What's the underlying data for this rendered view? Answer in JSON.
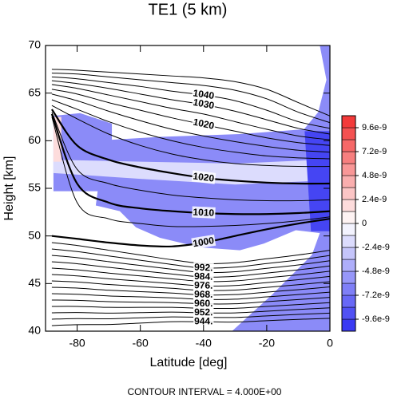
{
  "chart_data": {
    "type": "contour",
    "title": "TE1 (5 km)",
    "xlabel": "Latitude [deg]",
    "ylabel": "Height [km]",
    "footer": "CONTOUR INTERVAL = 4.000E+00",
    "xlim": [
      -90,
      0
    ],
    "ylim": [
      40,
      70
    ],
    "xticks": [
      -80,
      -60,
      -40,
      -20,
      0
    ],
    "yticks": [
      40,
      45,
      50,
      55,
      60,
      65,
      70
    ],
    "clim": [
      -1.08e-08,
      1.08e-08
    ],
    "cticks": [
      -9.6e-09,
      -7.2e-09,
      -4.8e-09,
      -2.4e-09,
      0,
      2.4e-09,
      4.8e-09,
      7.2e-09,
      9.6e-09
    ],
    "colormap": [
      "#2e2ef2",
      "#ffffff",
      "#f22e2e"
    ],
    "line_color": "#000000",
    "regions": [
      {
        "level": -6e-09,
        "x": [
          -87.5,
          -79.1,
          -69.0,
          -69.0,
          -53.8,
          -28.5,
          -8.2,
          -3.7,
          -1.1,
          -3.2,
          0,
          0,
          -31.0,
          -18.4,
          -5.7,
          -3.2,
          -10.8,
          -20.9,
          -28.5,
          -41.1,
          -53.8,
          -61.4,
          -66.5,
          -74.1,
          -73.5,
          -87.5
        ],
        "y": [
          62.6,
          62.9,
          61.8,
          60.1,
          60.4,
          60.7,
          61.2,
          63.0,
          66.4,
          70,
          70,
          40,
          40,
          43.8,
          48.0,
          50.3,
          50.6,
          49.2,
          48.5,
          48.8,
          49.8,
          50.9,
          52.6,
          53.2,
          54.7,
          54.7
        ]
      },
      {
        "level": -1.8e-09,
        "x": [
          -87.5,
          -60,
          -30,
          -3.5,
          -3.5,
          -30,
          -60,
          -87.5
        ],
        "y": [
          58.0,
          57.8,
          57.6,
          58.0,
          55.8,
          55.4,
          56.0,
          56.6
        ]
      },
      {
        "level": -9.6e-09,
        "x": [
          -8,
          0,
          0,
          -6
        ],
        "y": [
          61,
          61,
          50.5,
          50.5
        ]
      },
      {
        "level": 1.8e-09,
        "x": [
          -87.5,
          -85,
          -85,
          -87.5
        ],
        "y": [
          62.5,
          62.5,
          57.8,
          57.8
        ]
      }
    ],
    "x": [
      -88,
      -80,
      -70,
      -60,
      -50,
      -40,
      -30,
      -20,
      -10,
      0
    ],
    "series": [
      {
        "values": [
          67.5,
          67.4,
          67.2,
          67.0,
          66.8,
          66.6,
          66.2,
          65.4,
          64.0,
          62.6
        ]
      },
      {
        "values": [
          67.1,
          67.0,
          66.7,
          66.4,
          66.1,
          65.8,
          65.3,
          64.4,
          63.0,
          61.9
        ]
      },
      {
        "name": "1040",
        "values": [
          66.7,
          66.5,
          66.1,
          65.7,
          65.2,
          64.8,
          64.2,
          63.2,
          62.0,
          61.3
        ]
      },
      {
        "name": "1030",
        "values": [
          66.3,
          66.0,
          65.5,
          64.9,
          64.3,
          63.8,
          63.1,
          62.2,
          61.3,
          60.7
        ]
      },
      {
        "values": [
          65.9,
          65.5,
          64.8,
          64.1,
          63.4,
          62.8,
          62.0,
          61.2,
          60.5,
          60.1
        ]
      },
      {
        "name": "1020",
        "values": [
          65.4,
          64.9,
          64.0,
          63.2,
          62.4,
          61.7,
          61.0,
          60.3,
          59.8,
          59.5
        ]
      },
      {
        "values": [
          64.9,
          64.2,
          63.1,
          62.1,
          61.2,
          60.5,
          59.9,
          59.4,
          59.0,
          58.8
        ]
      },
      {
        "values": [
          64.3,
          63.3,
          62.0,
          60.9,
          60.0,
          59.3,
          58.8,
          58.4,
          58.2,
          58.1
        ]
      },
      {
        "values": [
          63.7,
          62.3,
          60.7,
          59.5,
          58.6,
          58.0,
          57.6,
          57.4,
          57.3,
          57.3
        ]
      },
      {
        "name": "1020",
        "bold": true,
        "values": [
          63.3,
          59.5,
          58.0,
          57.2,
          56.6,
          56.1,
          55.8,
          55.6,
          55.5,
          55.5
        ]
      },
      {
        "values": [
          63.0,
          57.0,
          55.5,
          54.8,
          54.3,
          54.0,
          53.8,
          53.7,
          53.7,
          53.8
        ]
      },
      {
        "name": "1010",
        "bold": true,
        "values": [
          62.8,
          55.5,
          53.5,
          52.9,
          52.6,
          52.4,
          52.3,
          52.3,
          52.4,
          52.6
        ]
      },
      {
        "values": [
          62.5,
          53.5,
          51.8,
          51.3,
          51.0,
          51.0,
          51.1,
          51.3,
          51.6,
          52.0
        ]
      },
      {
        "name": "1000",
        "bold": true,
        "values": [
          50.0,
          49.7,
          49.3,
          49.0,
          48.9,
          49.3,
          50.0,
          50.7,
          51.3,
          51.8
        ]
      },
      {
        "values": [
          49.3,
          49.0,
          48.5,
          48.0,
          47.5,
          47.1,
          47.2,
          47.6,
          48.0,
          48.5
        ]
      },
      {
        "name": "992.",
        "values": [
          48.63,
          48.36,
          47.9,
          47.45,
          47.0,
          46.63,
          46.72,
          47.1,
          47.48,
          47.95
        ]
      },
      {
        "values": [
          47.96,
          47.72,
          47.3,
          46.9,
          46.5,
          46.16,
          46.24,
          46.6,
          46.96,
          47.4
        ]
      },
      {
        "name": "984.",
        "values": [
          47.29,
          47.08,
          46.7,
          46.35,
          46.0,
          45.69,
          45.76,
          46.1,
          46.44,
          46.85
        ]
      },
      {
        "values": [
          46.62,
          46.44,
          46.1,
          45.8,
          45.5,
          45.22,
          45.28,
          45.6,
          45.92,
          46.3
        ]
      },
      {
        "name": "976.",
        "values": [
          45.95,
          45.8,
          45.5,
          45.25,
          45.0,
          44.75,
          44.8,
          45.1,
          45.4,
          45.75
        ]
      },
      {
        "values": [
          45.28,
          45.16,
          44.9,
          44.7,
          44.5,
          44.28,
          44.32,
          44.6,
          44.88,
          45.2
        ]
      },
      {
        "name": "968.",
        "values": [
          44.61,
          44.52,
          44.3,
          44.15,
          44.0,
          43.81,
          43.84,
          44.1,
          44.36,
          44.65
        ]
      },
      {
        "values": [
          43.94,
          43.88,
          43.7,
          43.6,
          43.5,
          43.34,
          43.36,
          43.6,
          43.84,
          44.1
        ]
      },
      {
        "name": "960.",
        "values": [
          43.27,
          43.24,
          43.1,
          43.05,
          43.0,
          42.87,
          42.88,
          43.1,
          43.32,
          43.55
        ]
      },
      {
        "values": [
          42.6,
          42.6,
          42.5,
          42.5,
          42.5,
          42.4,
          42.4,
          42.6,
          42.8,
          43.0
        ]
      },
      {
        "name": "952.",
        "values": [
          41.93,
          41.96,
          41.9,
          41.95,
          42.0,
          41.93,
          41.92,
          42.1,
          42.28,
          42.45
        ]
      },
      {
        "values": [
          41.26,
          41.32,
          41.3,
          41.4,
          41.5,
          41.46,
          41.44,
          41.6,
          41.76,
          41.9
        ]
      },
      {
        "name": "944.",
        "values": [
          40.59,
          40.68,
          40.7,
          40.85,
          41.0,
          40.99,
          40.96,
          41.1,
          41.24,
          41.35
        ]
      }
    ]
  }
}
